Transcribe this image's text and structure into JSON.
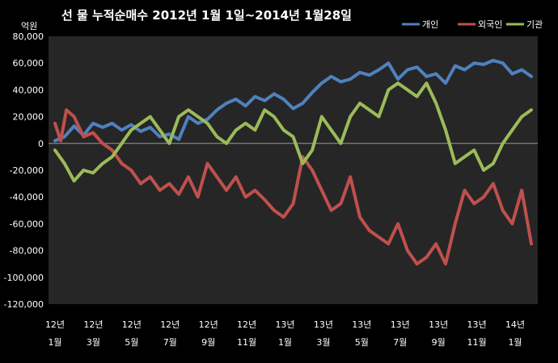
{
  "chart_data": {
    "type": "line",
    "title": "선 물 누적순매수 2012년 1월 1일~2014년 1월28일",
    "ylabel": "억원",
    "xlabel": "",
    "ylim": [
      -120000,
      80000
    ],
    "yticks": [
      80000,
      60000,
      40000,
      20000,
      0,
      -20000,
      -40000,
      -60000,
      -80000,
      -100000,
      -120000
    ],
    "ytick_labels": [
      "80,000",
      "60,000",
      "40,000",
      "20,000",
      "0",
      "-20,000",
      "-40,000",
      "-60,000",
      "-80,000",
      "-100,000",
      "-120,000"
    ],
    "x_ticks": [
      {
        "year": "12년",
        "month": "1월"
      },
      {
        "year": "12년",
        "month": "3월"
      },
      {
        "year": "12년",
        "month": "5월"
      },
      {
        "year": "12년",
        "month": "7월"
      },
      {
        "year": "12년",
        "month": "9월"
      },
      {
        "year": "12년",
        "month": "11월"
      },
      {
        "year": "13년",
        "month": "1월"
      },
      {
        "year": "13년",
        "month": "3월"
      },
      {
        "year": "13년",
        "month": "5월"
      },
      {
        "year": "13년",
        "month": "7월"
      },
      {
        "year": "13년",
        "month": "9월"
      },
      {
        "year": "13년",
        "month": "11월"
      },
      {
        "year": "14년",
        "month": "1월"
      }
    ],
    "x_unit": "months since 2012-01",
    "x_range": [
      0,
      25
    ],
    "grid": false,
    "legend_position": "top-right",
    "series": [
      {
        "name": "개인",
        "color": "#4f81bd",
        "points": [
          [
            0,
            2000
          ],
          [
            0.5,
            5000
          ],
          [
            1,
            13000
          ],
          [
            1.5,
            6000
          ],
          [
            2,
            15000
          ],
          [
            2.5,
            12000
          ],
          [
            3,
            15000
          ],
          [
            3.5,
            10000
          ],
          [
            4,
            14000
          ],
          [
            4.5,
            9000
          ],
          [
            5,
            12000
          ],
          [
            5.5,
            5000
          ],
          [
            6,
            7000
          ],
          [
            6.5,
            3000
          ],
          [
            7,
            20000
          ],
          [
            7.5,
            15000
          ],
          [
            8,
            18000
          ],
          [
            8.5,
            25000
          ],
          [
            9,
            30000
          ],
          [
            9.5,
            33000
          ],
          [
            10,
            28000
          ],
          [
            10.5,
            35000
          ],
          [
            11,
            32000
          ],
          [
            11.5,
            37000
          ],
          [
            12,
            33000
          ],
          [
            12.5,
            26000
          ],
          [
            13,
            30000
          ],
          [
            13.5,
            38000
          ],
          [
            14,
            45000
          ],
          [
            14.5,
            50000
          ],
          [
            15,
            46000
          ],
          [
            15.5,
            48000
          ],
          [
            16,
            53000
          ],
          [
            16.5,
            51000
          ],
          [
            17,
            55000
          ],
          [
            17.5,
            60000
          ],
          [
            18,
            48000
          ],
          [
            18.5,
            55000
          ],
          [
            19,
            57000
          ],
          [
            19.5,
            50000
          ],
          [
            20,
            52000
          ],
          [
            20.5,
            45000
          ],
          [
            21,
            58000
          ],
          [
            21.5,
            55000
          ],
          [
            22,
            60000
          ],
          [
            22.5,
            59000
          ],
          [
            23,
            62000
          ],
          [
            23.5,
            60000
          ],
          [
            24,
            52000
          ],
          [
            24.5,
            55000
          ],
          [
            25,
            50000
          ]
        ]
      },
      {
        "name": "외국인",
        "color": "#c0504d",
        "points": [
          [
            0,
            15000
          ],
          [
            0.3,
            2000
          ],
          [
            0.6,
            25000
          ],
          [
            1,
            20000
          ],
          [
            1.5,
            5000
          ],
          [
            2,
            8000
          ],
          [
            2.5,
            0
          ],
          [
            3,
            -5000
          ],
          [
            3.5,
            -15000
          ],
          [
            4,
            -20000
          ],
          [
            4.5,
            -30000
          ],
          [
            5,
            -25000
          ],
          [
            5.5,
            -35000
          ],
          [
            6,
            -30000
          ],
          [
            6.5,
            -38000
          ],
          [
            7,
            -25000
          ],
          [
            7.5,
            -40000
          ],
          [
            8,
            -15000
          ],
          [
            8.5,
            -25000
          ],
          [
            9,
            -35000
          ],
          [
            9.5,
            -25000
          ],
          [
            10,
            -40000
          ],
          [
            10.5,
            -35000
          ],
          [
            11,
            -42000
          ],
          [
            11.5,
            -50000
          ],
          [
            12,
            -55000
          ],
          [
            12.5,
            -45000
          ],
          [
            13,
            -10000
          ],
          [
            13.5,
            -20000
          ],
          [
            14,
            -35000
          ],
          [
            14.5,
            -50000
          ],
          [
            15,
            -45000
          ],
          [
            15.5,
            -25000
          ],
          [
            16,
            -55000
          ],
          [
            16.5,
            -65000
          ],
          [
            17,
            -70000
          ],
          [
            17.5,
            -75000
          ],
          [
            18,
            -60000
          ],
          [
            18.5,
            -80000
          ],
          [
            19,
            -90000
          ],
          [
            19.5,
            -85000
          ],
          [
            20,
            -75000
          ],
          [
            20.5,
            -90000
          ],
          [
            21,
            -60000
          ],
          [
            21.5,
            -35000
          ],
          [
            22,
            -45000
          ],
          [
            22.5,
            -40000
          ],
          [
            23,
            -30000
          ],
          [
            23.5,
            -50000
          ],
          [
            24,
            -60000
          ],
          [
            24.5,
            -35000
          ],
          [
            25,
            -75000
          ]
        ]
      },
      {
        "name": "기관",
        "color": "#9bbb59",
        "points": [
          [
            0,
            -5000
          ],
          [
            0.5,
            -15000
          ],
          [
            1,
            -28000
          ],
          [
            1.5,
            -20000
          ],
          [
            2,
            -22000
          ],
          [
            2.5,
            -15000
          ],
          [
            3,
            -10000
          ],
          [
            3.5,
            0
          ],
          [
            4,
            10000
          ],
          [
            4.5,
            15000
          ],
          [
            5,
            20000
          ],
          [
            5.5,
            10000
          ],
          [
            6,
            0
          ],
          [
            6.5,
            20000
          ],
          [
            7,
            25000
          ],
          [
            7.5,
            20000
          ],
          [
            8,
            15000
          ],
          [
            8.5,
            5000
          ],
          [
            9,
            0
          ],
          [
            9.5,
            10000
          ],
          [
            10,
            15000
          ],
          [
            10.5,
            10000
          ],
          [
            11,
            25000
          ],
          [
            11.5,
            20000
          ],
          [
            12,
            10000
          ],
          [
            12.5,
            5000
          ],
          [
            13,
            -15000
          ],
          [
            13.5,
            -5000
          ],
          [
            14,
            20000
          ],
          [
            14.5,
            10000
          ],
          [
            15,
            0
          ],
          [
            15.5,
            20000
          ],
          [
            16,
            30000
          ],
          [
            16.5,
            25000
          ],
          [
            17,
            20000
          ],
          [
            17.5,
            40000
          ],
          [
            18,
            45000
          ],
          [
            18.5,
            40000
          ],
          [
            19,
            35000
          ],
          [
            19.5,
            45000
          ],
          [
            20,
            30000
          ],
          [
            20.5,
            10000
          ],
          [
            21,
            -15000
          ],
          [
            21.5,
            -10000
          ],
          [
            22,
            -5000
          ],
          [
            22.5,
            -20000
          ],
          [
            23,
            -15000
          ],
          [
            23.5,
            0
          ],
          [
            24,
            10000
          ],
          [
            24.5,
            20000
          ],
          [
            25,
            25000
          ]
        ]
      }
    ]
  }
}
